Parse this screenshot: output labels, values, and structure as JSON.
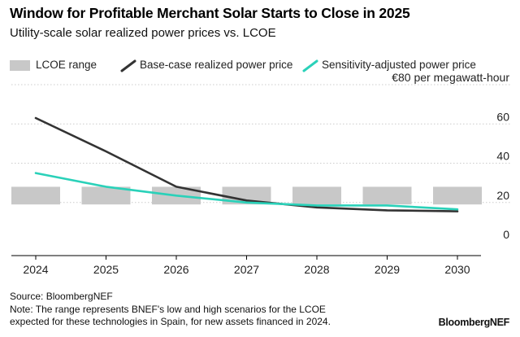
{
  "title": "Window for Profitable Merchant Solar Starts to Close in 2025",
  "subtitle": "Utility-scale solar realized power prices vs. LCOE",
  "legend": {
    "range_label": "LCOE range",
    "base_label": "Base-case realized power price",
    "sens_label": "Sensitivity-adjusted power price"
  },
  "unit_label": "€80 per megawatt-hour",
  "colors": {
    "range": "#c8c8c8",
    "base": "#333333",
    "sensitivity": "#2ad1b9",
    "grid": "#cccccc"
  },
  "chart_data": {
    "type": "line",
    "x": [
      "2024",
      "2025",
      "2026",
      "2027",
      "2028",
      "2029",
      "2030"
    ],
    "ylim": [
      0,
      80
    ],
    "yticks": [
      "0",
      "20",
      "40",
      "60"
    ],
    "y_top_label": "€80 per megawatt-hour",
    "grid": "horizontal",
    "legend_placement": "top",
    "series": [
      {
        "name": "Base-case realized power price",
        "values": [
          63,
          46,
          28,
          21,
          17.5,
          16,
          15.5
        ]
      },
      {
        "name": "Sensitivity-adjusted power price",
        "values": [
          35,
          28,
          23.5,
          20,
          18.5,
          18.5,
          16.5
        ]
      }
    ],
    "ranges": [
      {
        "name": "LCOE range",
        "low": 19,
        "high": 28
      }
    ]
  },
  "footer": {
    "source": "Source: BloombergNEF",
    "note_line1": "Note: The range represents BNEF's low and high scenarios for the LCOE",
    "note_line2": "expected for these technologies in Spain, for new assets financed in 2024."
  },
  "brand": "BloombergNEF"
}
